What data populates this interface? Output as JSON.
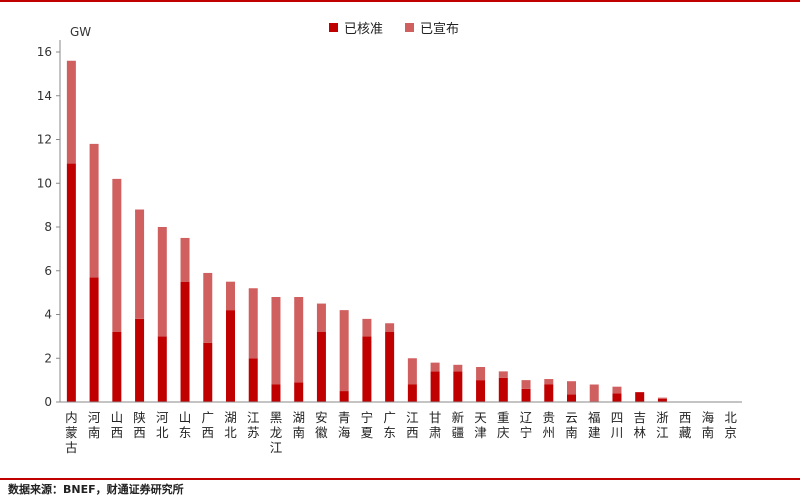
{
  "colors": {
    "approved": "#c00000",
    "announced": "#d06060",
    "rule": "#c00000",
    "axis": "#888888"
  },
  "footer": {
    "source": "数据来源：BNEF，财通证券研究所"
  },
  "chart_data": {
    "type": "bar",
    "stacked": true,
    "ylabel": "GW",
    "ylim": [
      0,
      16
    ],
    "yticks": [
      0,
      2,
      4,
      6,
      8,
      10,
      12,
      14,
      16
    ],
    "legend_position": "top-center",
    "grid": false,
    "categories": [
      "内蒙古",
      "河南",
      "山西",
      "陕西",
      "河北",
      "山东",
      "广西",
      "湖北",
      "江苏",
      "黑龙江",
      "湖南",
      "安徽",
      "青海",
      "宁夏",
      "广东",
      "江西",
      "甘肃",
      "新疆",
      "天津",
      "重庆",
      "辽宁",
      "贵州",
      "云南",
      "福建",
      "四川",
      "吉林",
      "浙江",
      "西藏",
      "海南",
      "北京"
    ],
    "series": [
      {
        "name": "已核准",
        "values": [
          10.9,
          5.7,
          3.2,
          3.8,
          3.0,
          5.5,
          2.7,
          4.2,
          2.0,
          0.8,
          0.9,
          3.2,
          0.5,
          3.0,
          3.2,
          0.8,
          1.4,
          1.4,
          1.0,
          1.1,
          0.6,
          0.8,
          0.35,
          0.0,
          0.4,
          0.45,
          0.15,
          0.0,
          0.0,
          0.0
        ]
      },
      {
        "name": "已宣布",
        "values": [
          4.7,
          6.1,
          7.0,
          5.0,
          5.0,
          2.0,
          3.2,
          1.3,
          3.2,
          4.0,
          3.9,
          1.3,
          3.7,
          0.8,
          0.4,
          1.2,
          0.4,
          0.3,
          0.6,
          0.3,
          0.4,
          0.25,
          0.6,
          0.8,
          0.3,
          0.0,
          0.05,
          0.0,
          0.0,
          0.0
        ]
      }
    ]
  }
}
